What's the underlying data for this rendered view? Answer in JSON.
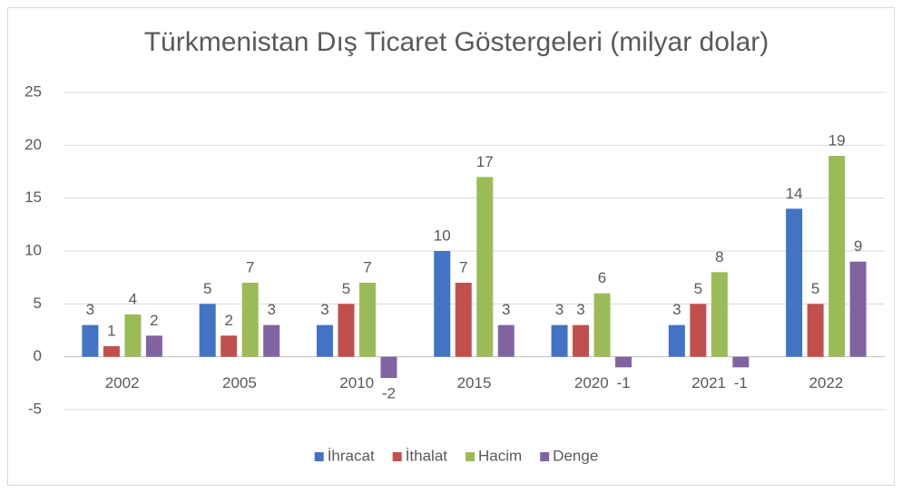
{
  "chart_data": {
    "type": "bar",
    "title": "Türkmenistan Dış Ticaret Göstergeleri (milyar dolar)",
    "categories": [
      "2002",
      "2005",
      "2010",
      "2015",
      "2020",
      "2021",
      "2022"
    ],
    "series": [
      {
        "name": "İhracat",
        "color": "#4472c4",
        "values": [
          3,
          5,
          3,
          10,
          3,
          3,
          14
        ]
      },
      {
        "name": "İthalat",
        "color": "#c0504d",
        "values": [
          1,
          2,
          5,
          7,
          3,
          5,
          5
        ]
      },
      {
        "name": "Hacim",
        "color": "#9bbb59",
        "values": [
          4,
          7,
          7,
          17,
          6,
          8,
          19
        ]
      },
      {
        "name": "Denge",
        "color": "#8064a2",
        "values": [
          2,
          3,
          -2,
          3,
          -1,
          -1,
          9
        ]
      }
    ],
    "ylim": [
      -5,
      25
    ],
    "yticks": [
      -5,
      0,
      5,
      10,
      15,
      20,
      25
    ],
    "grid": true,
    "legend": "bottom"
  }
}
